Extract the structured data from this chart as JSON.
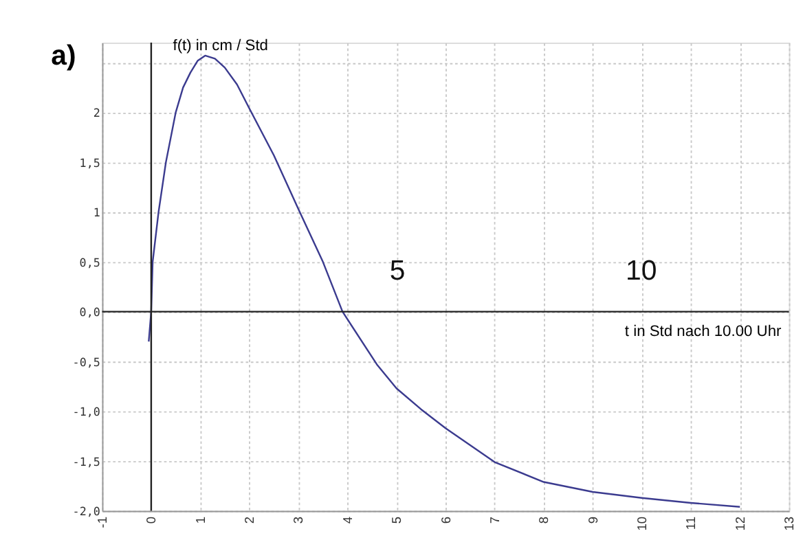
{
  "chart_data": {
    "type": "line",
    "title": "a)",
    "xlabel": "t in Std nach 10.00 Uhr",
    "ylabel": "f(t) in cm / Std",
    "x": [
      -0.05,
      0,
      0.03,
      0.15,
      0.3,
      0.5,
      0.65,
      0.8,
      0.95,
      1.1,
      1.3,
      1.5,
      1.75,
      2,
      2.5,
      3,
      3.5,
      3.9,
      4.6,
      5,
      5.5,
      6,
      7,
      8,
      9,
      10,
      11,
      12
    ],
    "series": [
      {
        "color": "#3b3b8f",
        "values": [
          -0.3,
          0,
          0.5,
          1,
          1.5,
          2,
          2.25,
          2.4,
          2.52,
          2.57,
          2.54,
          2.45,
          2.28,
          2.04,
          1.57,
          1.03,
          0.5,
          0,
          -0.53,
          -0.77,
          -0.98,
          -1.17,
          -1.51,
          -1.71,
          -1.81,
          -1.87,
          -1.92,
          -1.96
        ]
      }
    ],
    "xlim": [
      -1,
      13
    ],
    "ylim": [
      -2,
      2.7
    ],
    "xticks": [
      -1,
      0,
      1,
      2,
      3,
      4,
      5,
      6,
      7,
      8,
      9,
      10,
      11,
      12,
      13
    ],
    "yticks": [
      {
        "value": -2,
        "label": "-2,0"
      },
      {
        "value": -1.5,
        "label": "-1,5"
      },
      {
        "value": -1,
        "label": "-1,0"
      },
      {
        "value": -0.5,
        "label": "-0,5"
      },
      {
        "value": 0,
        "label": "0,0"
      },
      {
        "value": 0.5,
        "label": "0,5"
      },
      {
        "value": 1,
        "label": "1"
      },
      {
        "value": 1.5,
        "label": "1,5"
      },
      {
        "value": 2,
        "label": "2"
      },
      {
        "value": 2.5,
        "label": null
      }
    ],
    "annotations": [
      "5",
      "10"
    ],
    "grid": true,
    "line_style": "solid",
    "marker": "none"
  }
}
